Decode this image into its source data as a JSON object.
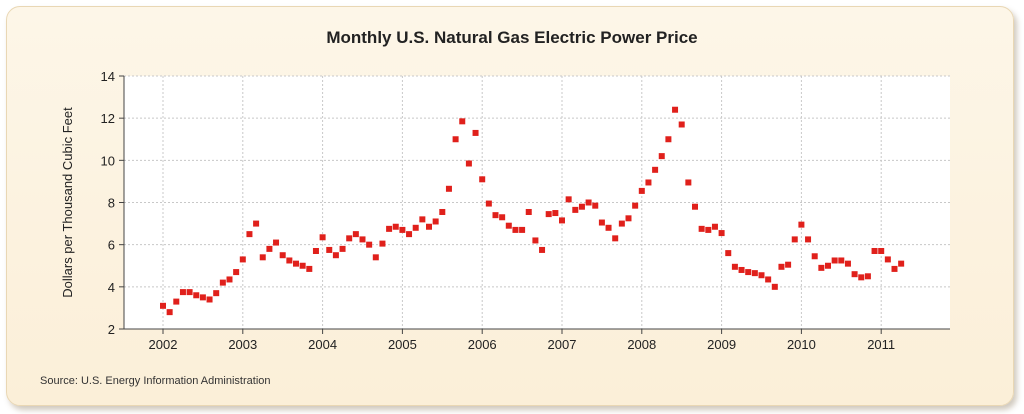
{
  "chart_data": {
    "type": "scatter",
    "title": "Monthly U.S. Natural Gas Electric Power Price",
    "xlabel": "",
    "ylabel": "Dollars per Thousand Cubic Feet",
    "xlim": [
      "2002-01",
      "2011-12"
    ],
    "ylim": [
      2,
      14
    ],
    "yticks": [
      2,
      4,
      6,
      8,
      10,
      12,
      14
    ],
    "xticks": [
      "2002",
      "2003",
      "2004",
      "2005",
      "2006",
      "2007",
      "2008",
      "2009",
      "2010",
      "2011"
    ],
    "grid": true,
    "marker_color": "#e0201b",
    "series": [
      {
        "points": [
          [
            "2002-01",
            3.1
          ],
          [
            "2002-02",
            2.8
          ],
          [
            "2002-03",
            3.3
          ],
          [
            "2002-04",
            3.75
          ],
          [
            "2002-05",
            3.75
          ],
          [
            "2002-06",
            3.6
          ],
          [
            "2002-07",
            3.5
          ],
          [
            "2002-08",
            3.4
          ],
          [
            "2002-09",
            3.7
          ],
          [
            "2002-10",
            4.2
          ],
          [
            "2002-11",
            4.35
          ],
          [
            "2002-12",
            4.7
          ],
          [
            "2003-01",
            5.3
          ],
          [
            "2003-02",
            6.5
          ],
          [
            "2003-03",
            7.0
          ],
          [
            "2003-04",
            5.4
          ],
          [
            "2003-05",
            5.8
          ],
          [
            "2003-06",
            6.1
          ],
          [
            "2003-07",
            5.5
          ],
          [
            "2003-08",
            5.25
          ],
          [
            "2003-09",
            5.1
          ],
          [
            "2003-10",
            5.0
          ],
          [
            "2003-11",
            4.85
          ],
          [
            "2003-12",
            5.7
          ],
          [
            "2004-01",
            6.35
          ],
          [
            "2004-02",
            5.75
          ],
          [
            "2004-03",
            5.5
          ],
          [
            "2004-04",
            5.8
          ],
          [
            "2004-05",
            6.3
          ],
          [
            "2004-06",
            6.5
          ],
          [
            "2004-07",
            6.25
          ],
          [
            "2004-08",
            6.0
          ],
          [
            "2004-09",
            5.4
          ],
          [
            "2004-10",
            6.05
          ],
          [
            "2004-11",
            6.75
          ],
          [
            "2004-12",
            6.85
          ],
          [
            "2005-01",
            6.7
          ],
          [
            "2005-02",
            6.5
          ],
          [
            "2005-03",
            6.8
          ],
          [
            "2005-04",
            7.2
          ],
          [
            "2005-05",
            6.85
          ],
          [
            "2005-06",
            7.1
          ],
          [
            "2005-07",
            7.55
          ],
          [
            "2005-08",
            8.65
          ],
          [
            "2005-09",
            11.0
          ],
          [
            "2005-10",
            11.85
          ],
          [
            "2005-11",
            9.85
          ],
          [
            "2005-12",
            11.3
          ],
          [
            "2006-01",
            9.1
          ],
          [
            "2006-02",
            7.95
          ],
          [
            "2006-03",
            7.4
          ],
          [
            "2006-04",
            7.3
          ],
          [
            "2006-05",
            6.9
          ],
          [
            "2006-06",
            6.7
          ],
          [
            "2006-07",
            6.7
          ],
          [
            "2006-08",
            7.55
          ],
          [
            "2006-09",
            6.2
          ],
          [
            "2006-10",
            5.75
          ],
          [
            "2006-11",
            7.45
          ],
          [
            "2006-12",
            7.5
          ],
          [
            "2007-01",
            7.15
          ],
          [
            "2007-02",
            8.15
          ],
          [
            "2007-03",
            7.65
          ],
          [
            "2007-04",
            7.8
          ],
          [
            "2007-05",
            8.0
          ],
          [
            "2007-06",
            7.85
          ],
          [
            "2007-07",
            7.05
          ],
          [
            "2007-08",
            6.8
          ],
          [
            "2007-09",
            6.3
          ],
          [
            "2007-10",
            7.0
          ],
          [
            "2007-11",
            7.25
          ],
          [
            "2007-12",
            7.85
          ],
          [
            "2008-01",
            8.55
          ],
          [
            "2008-02",
            8.95
          ],
          [
            "2008-03",
            9.55
          ],
          [
            "2008-04",
            10.2
          ],
          [
            "2008-05",
            11.0
          ],
          [
            "2008-06",
            12.4
          ],
          [
            "2008-07",
            11.7
          ],
          [
            "2008-08",
            8.95
          ],
          [
            "2008-09",
            7.8
          ],
          [
            "2008-10",
            6.75
          ],
          [
            "2008-11",
            6.7
          ],
          [
            "2008-12",
            6.85
          ],
          [
            "2009-01",
            6.55
          ],
          [
            "2009-02",
            5.6
          ],
          [
            "2009-03",
            4.95
          ],
          [
            "2009-04",
            4.8
          ],
          [
            "2009-05",
            4.7
          ],
          [
            "2009-06",
            4.65
          ],
          [
            "2009-07",
            4.55
          ],
          [
            "2009-08",
            4.35
          ],
          [
            "2009-09",
            4.0
          ],
          [
            "2009-10",
            4.95
          ],
          [
            "2009-11",
            5.05
          ],
          [
            "2009-12",
            6.25
          ],
          [
            "2010-01",
            6.95
          ],
          [
            "2010-02",
            6.25
          ],
          [
            "2010-03",
            5.45
          ],
          [
            "2010-04",
            4.9
          ],
          [
            "2010-05",
            5.0
          ],
          [
            "2010-06",
            5.25
          ],
          [
            "2010-07",
            5.25
          ],
          [
            "2010-08",
            5.1
          ],
          [
            "2010-09",
            4.6
          ],
          [
            "2010-10",
            4.45
          ],
          [
            "2010-11",
            4.5
          ],
          [
            "2010-12",
            5.7
          ],
          [
            "2011-01",
            5.7
          ],
          [
            "2011-02",
            5.3
          ],
          [
            "2011-03",
            4.85
          ],
          [
            "2011-04",
            5.1
          ]
        ]
      }
    ],
    "source": "Source: U.S. Energy Information Administration"
  }
}
